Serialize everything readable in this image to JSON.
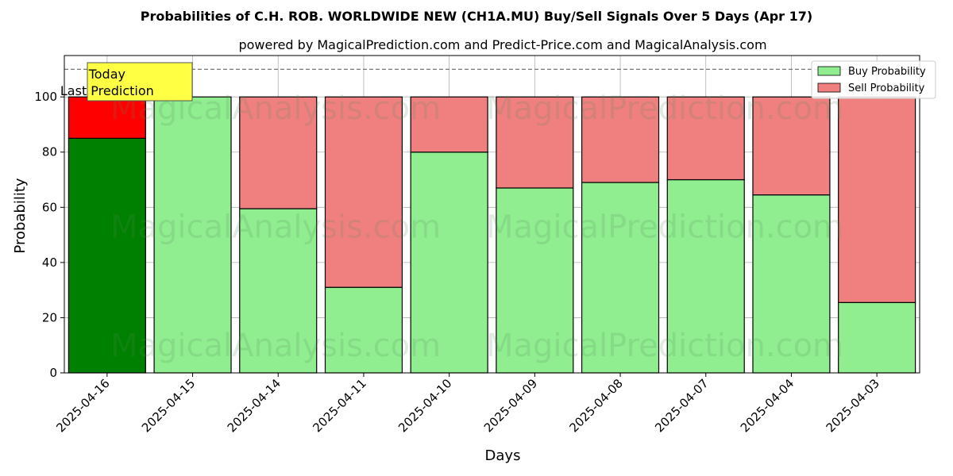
{
  "chart_data": {
    "type": "bar",
    "stacked": true,
    "title": "Probabilities of C.H. ROB. WORLDWIDE NEW (CH1A.MU) Buy/Sell Signals Over 5 Days (Apr 17)",
    "subtitle": "powered by MagicalPrediction.com and Predict-Price.com and MagicalAnalysis.com",
    "xlabel": "Days",
    "ylabel": "Probability",
    "ylim": [
      0,
      115
    ],
    "yticks": [
      0,
      20,
      40,
      60,
      80,
      100
    ],
    "grid": true,
    "legend_position": "top-right",
    "categories": [
      "2025-04-16",
      "2025-04-15",
      "2025-04-14",
      "2025-04-11",
      "2025-04-10",
      "2025-04-09",
      "2025-04-08",
      "2025-04-07",
      "2025-04-04",
      "2025-04-03"
    ],
    "series": [
      {
        "name": "Buy Probability",
        "color": "#90ee90",
        "highlight_color": "#008000",
        "values": [
          85,
          100,
          59.5,
          31,
          80,
          67,
          69,
          70,
          64.5,
          25.5
        ]
      },
      {
        "name": "Sell Probability",
        "color": "#f08080",
        "highlight_color": "#ff0000",
        "values": [
          15,
          0,
          40.5,
          69,
          20,
          33,
          31,
          30,
          35.5,
          74.5
        ]
      }
    ],
    "highlight_index": 0,
    "reference_line": {
      "value": 110,
      "style": "dashed"
    },
    "annotation": {
      "line1": "Today",
      "line2": "Last Prediction",
      "background": "#ffff44"
    },
    "watermarks": [
      "MagicalAnalysis.com",
      "MagicalPrediction.com"
    ]
  }
}
